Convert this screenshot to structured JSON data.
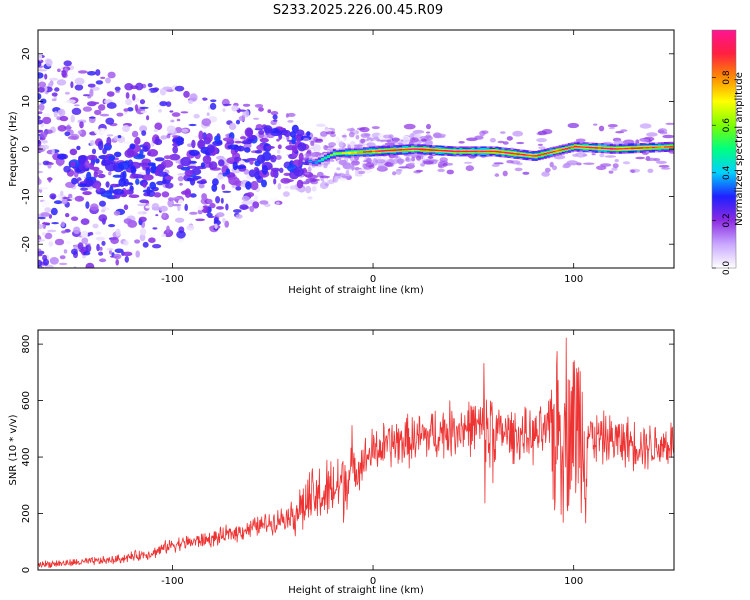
{
  "title": "S233.2025.226.00.45.R09",
  "chart_data": [
    {
      "type": "heatmap",
      "name": "spectrogram",
      "xlabel": "Height of straight line (km)",
      "ylabel": "Frequency (Hz)",
      "xlim": [
        -167,
        150
      ],
      "ylim": [
        -25,
        25
      ],
      "x_ticks": [
        -100,
        0,
        100
      ],
      "y_ticks": [
        -20,
        -10,
        0,
        10,
        20
      ],
      "colorbar": {
        "label": "Normalized spectral amplitude",
        "range": [
          0,
          1
        ],
        "ticks": [
          "0.0",
          "0.2",
          "0.4",
          "0.6",
          "0.8"
        ],
        "colors": [
          "#ffffff",
          "#c9a8ff",
          "#8a2be2",
          "#2020ff",
          "#00cfff",
          "#00ff80",
          "#7dff00",
          "#ffff00",
          "#ff8c00",
          "#ff2040",
          "#ff1493"
        ]
      },
      "ridge": {
        "description_points_x_km": [
          -167,
          -120,
          -80,
          -40,
          -30,
          -20,
          0,
          20,
          40,
          60,
          80,
          100,
          120,
          150
        ],
        "frequency_hz": [
          -5,
          -4,
          -3,
          -1,
          -3,
          -1,
          -0.5,
          0,
          -0.5,
          -0.5,
          -1.5,
          0.5,
          0,
          0.5
        ],
        "peak_amplitude": [
          0.2,
          0.25,
          0.3,
          0.3,
          0.4,
          0.6,
          0.9,
          0.95,
          0.9,
          0.95,
          0.85,
          0.9,
          0.95,
          0.8
        ]
      }
    },
    {
      "type": "line",
      "name": "snr",
      "xlabel": "Height of straight line (km)",
      "ylabel": "SNR (10 * v/v)",
      "xlim": [
        -167,
        150
      ],
      "ylim": [
        0,
        850
      ],
      "x_ticks": [
        -100,
        0,
        100
      ],
      "y_ticks": [
        0,
        200,
        400,
        600,
        800
      ],
      "color": "#ee3333",
      "series": [
        {
          "name": "SNR",
          "x": [
            -167,
            -150,
            -130,
            -110,
            -100,
            -90,
            -80,
            -70,
            -60,
            -50,
            -40,
            -30,
            -20,
            -10,
            0,
            10,
            20,
            30,
            40,
            50,
            60,
            70,
            80,
            90,
            100,
            110,
            120,
            130,
            140,
            150
          ],
          "y": [
            20,
            25,
            35,
            60,
            90,
            100,
            110,
            130,
            150,
            170,
            200,
            250,
            280,
            350,
            420,
            450,
            460,
            480,
            500,
            510,
            490,
            480,
            470,
            500,
            520,
            470,
            460,
            450,
            440,
            450
          ]
        }
      ]
    }
  ]
}
